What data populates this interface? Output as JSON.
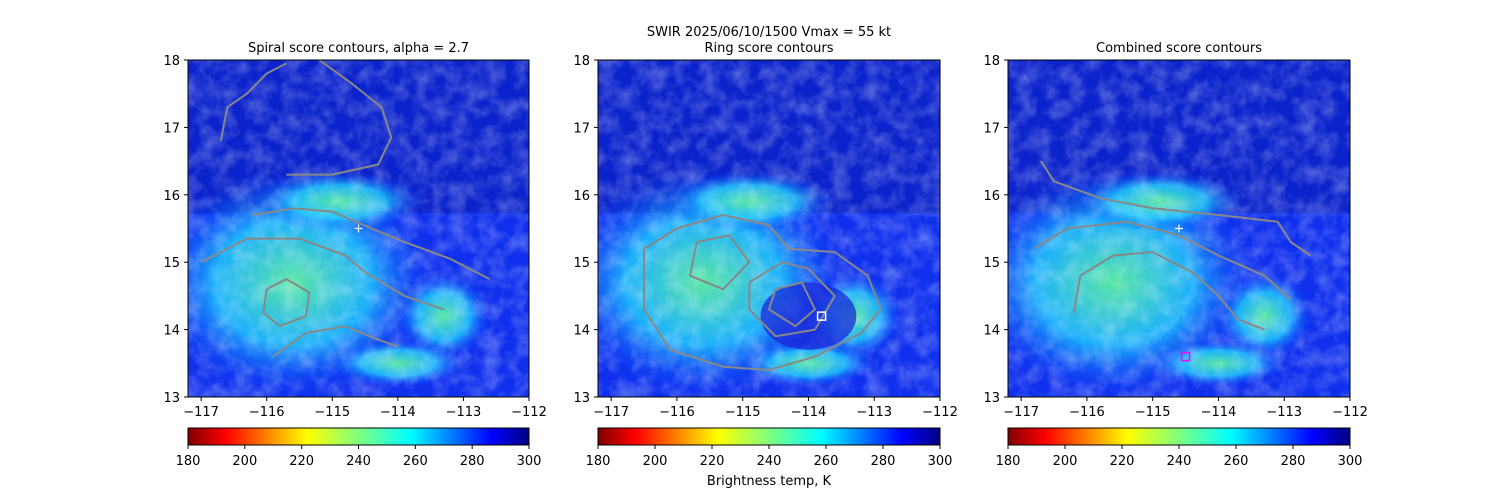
{
  "figure": {
    "suptitle": "SWIR  2025/06/10/1500    Vmax = 55 kt",
    "colorbar_label": "Brightness temp, K"
  },
  "chart_data": [
    {
      "type": "heatmap",
      "title": "Spiral score contours, alpha =  2.7",
      "xlim": [
        -117.2,
        -112
      ],
      "ylim": [
        13,
        18
      ],
      "xticks": [
        "−117",
        "−116",
        "−115",
        "−114",
        "−113",
        "−112"
      ],
      "yticks": [
        "13",
        "14",
        "15",
        "16",
        "17",
        "18"
      ],
      "colorbar": {
        "min": 180,
        "max": 300,
        "ticks": [
          "180",
          "200",
          "220",
          "240",
          "260",
          "280",
          "300"
        ],
        "colormap": "jet_r"
      },
      "marker": {
        "symbol": "+",
        "lon": -114.6,
        "lat": 15.5,
        "color": "#ffffff"
      },
      "contours": [
        [
          [
            -116.7,
            16.8
          ],
          [
            -116.6,
            17.3
          ],
          [
            -116.3,
            17.5
          ],
          [
            -116.0,
            17.8
          ],
          [
            -115.7,
            17.95
          ]
        ],
        [
          [
            -115.2,
            18.0
          ],
          [
            -114.7,
            17.65
          ],
          [
            -114.25,
            17.3
          ],
          [
            -114.1,
            16.85
          ],
          [
            -114.3,
            16.45
          ],
          [
            -115.0,
            16.3
          ],
          [
            -115.7,
            16.3
          ]
        ],
        [
          [
            -116.2,
            15.7
          ],
          [
            -115.6,
            15.8
          ],
          [
            -115.0,
            15.75
          ],
          [
            -114.4,
            15.5
          ],
          [
            -113.9,
            15.3
          ],
          [
            -113.2,
            15.05
          ],
          [
            -112.6,
            14.75
          ]
        ],
        [
          [
            -117.0,
            15.0
          ],
          [
            -116.3,
            15.35
          ],
          [
            -115.5,
            15.35
          ],
          [
            -114.8,
            15.1
          ],
          [
            -114.5,
            14.85
          ],
          [
            -113.9,
            14.5
          ],
          [
            -113.3,
            14.3
          ]
        ],
        [
          [
            -116.0,
            14.6
          ],
          [
            -115.7,
            14.75
          ],
          [
            -115.35,
            14.55
          ],
          [
            -115.4,
            14.2
          ],
          [
            -115.8,
            14.05
          ],
          [
            -116.05,
            14.25
          ],
          [
            -116.0,
            14.6
          ]
        ],
        [
          [
            -115.9,
            13.6
          ],
          [
            -115.4,
            13.95
          ],
          [
            -114.8,
            14.05
          ],
          [
            -114.3,
            13.85
          ],
          [
            -114.0,
            13.75
          ]
        ]
      ]
    },
    {
      "type": "heatmap",
      "title": "Ring score contours",
      "xlim": [
        -117.2,
        -112
      ],
      "ylim": [
        13,
        18
      ],
      "xticks": [
        "−117",
        "−116",
        "−115",
        "−114",
        "−113",
        "−112"
      ],
      "yticks": [
        "13",
        "14",
        "15",
        "16",
        "17",
        "18"
      ],
      "colorbar": {
        "min": 180,
        "max": 300,
        "ticks": [
          "180",
          "200",
          "220",
          "240",
          "260",
          "280",
          "300"
        ],
        "colormap": "jet_r"
      },
      "marker": {
        "symbol": "square",
        "lon": -113.8,
        "lat": 14.2,
        "color": "#ffffff"
      },
      "contours": [
        [
          [
            -116.5,
            15.2
          ],
          [
            -116.0,
            15.5
          ],
          [
            -115.3,
            15.7
          ],
          [
            -114.6,
            15.55
          ],
          [
            -114.3,
            15.2
          ],
          [
            -113.6,
            15.15
          ],
          [
            -113.1,
            14.8
          ],
          [
            -112.9,
            14.3
          ],
          [
            -113.2,
            13.95
          ],
          [
            -113.9,
            13.6
          ],
          [
            -114.6,
            13.4
          ],
          [
            -115.3,
            13.45
          ],
          [
            -116.1,
            13.7
          ],
          [
            -116.5,
            14.3
          ],
          [
            -116.5,
            15.2
          ]
        ],
        [
          [
            -115.7,
            15.3
          ],
          [
            -115.2,
            15.4
          ],
          [
            -114.9,
            15.0
          ],
          [
            -115.3,
            14.6
          ],
          [
            -115.8,
            14.8
          ],
          [
            -115.7,
            15.3
          ]
        ],
        [
          [
            -114.9,
            14.7
          ],
          [
            -114.4,
            15.0
          ],
          [
            -114.0,
            14.9
          ],
          [
            -113.6,
            14.5
          ],
          [
            -113.9,
            14.0
          ],
          [
            -114.5,
            13.9
          ],
          [
            -114.9,
            14.3
          ],
          [
            -114.9,
            14.7
          ]
        ],
        [
          [
            -114.5,
            14.6
          ],
          [
            -114.1,
            14.7
          ],
          [
            -113.9,
            14.3
          ],
          [
            -114.2,
            14.05
          ],
          [
            -114.6,
            14.3
          ],
          [
            -114.5,
            14.6
          ]
        ]
      ]
    },
    {
      "type": "heatmap",
      "title": "Combined score contours",
      "xlim": [
        -117.2,
        -112
      ],
      "ylim": [
        13,
        18
      ],
      "xticks": [
        "−117",
        "−116",
        "−115",
        "−114",
        "−113",
        "−112"
      ],
      "yticks": [
        "13",
        "14",
        "15",
        "16",
        "17",
        "18"
      ],
      "colorbar": {
        "min": 180,
        "max": 300,
        "ticks": [
          "180",
          "200",
          "220",
          "240",
          "260",
          "280",
          "300"
        ],
        "colormap": "jet_r"
      },
      "marker": {
        "symbol": "+",
        "lon": -114.6,
        "lat": 15.5,
        "color": "#ffffff"
      },
      "marker2": {
        "symbol": "square",
        "lon": -114.5,
        "lat": 13.6,
        "color": "#ff00ff"
      },
      "contours": [
        [
          [
            -116.7,
            16.5
          ],
          [
            -116.5,
            16.2
          ],
          [
            -115.8,
            15.95
          ],
          [
            -115.0,
            15.8
          ],
          [
            -114.0,
            15.7
          ],
          [
            -113.1,
            15.6
          ],
          [
            -112.9,
            15.3
          ],
          [
            -112.6,
            15.1
          ]
        ],
        [
          [
            -116.8,
            15.2
          ],
          [
            -116.3,
            15.5
          ],
          [
            -115.4,
            15.6
          ],
          [
            -114.6,
            15.4
          ],
          [
            -114.0,
            15.1
          ],
          [
            -113.3,
            14.8
          ],
          [
            -112.9,
            14.45
          ]
        ],
        [
          [
            -116.2,
            14.25
          ],
          [
            -116.1,
            14.8
          ],
          [
            -115.6,
            15.1
          ],
          [
            -115.0,
            15.15
          ],
          [
            -114.4,
            14.85
          ],
          [
            -114.0,
            14.5
          ],
          [
            -113.7,
            14.15
          ],
          [
            -113.3,
            14.0
          ]
        ]
      ]
    }
  ]
}
